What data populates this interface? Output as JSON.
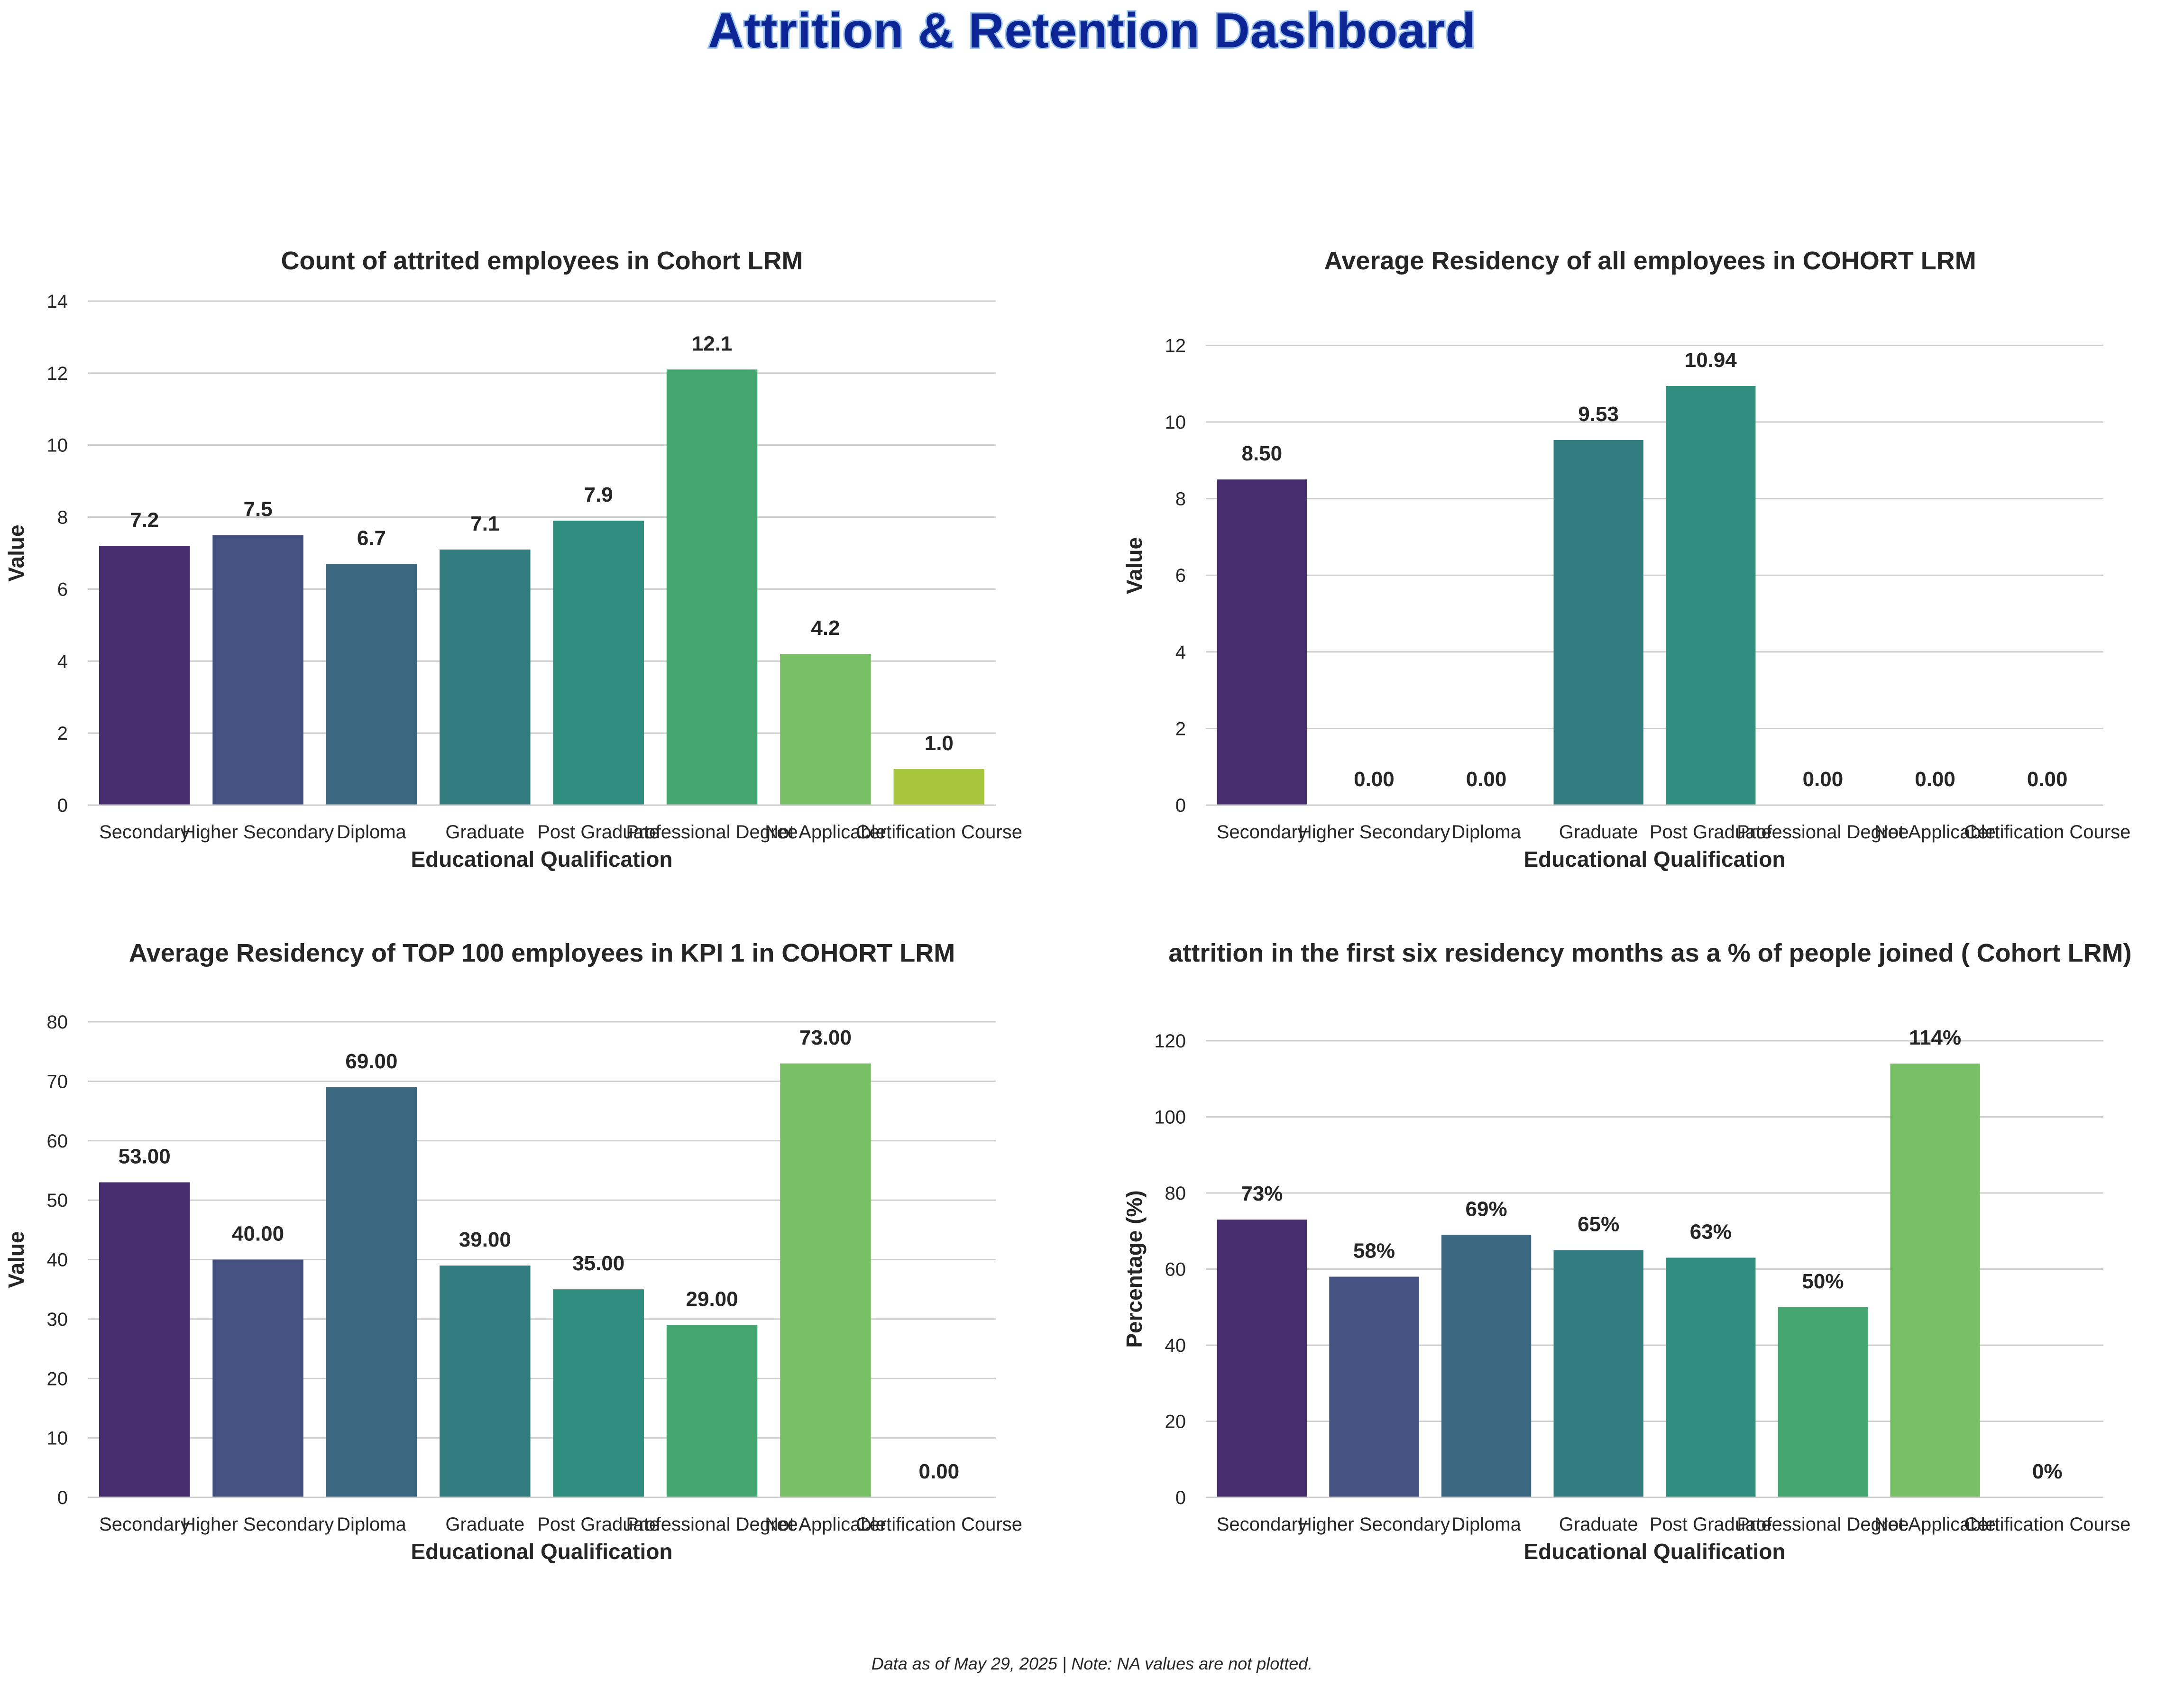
{
  "title": "Attrition & Retention Dashboard",
  "footnote": "Data as of May 29, 2025 | Note: NA values are not plotted.",
  "palette": [
    "#472d6e",
    "#465281",
    "#3b6780",
    "#327c7f",
    "#2e8d7e",
    "#45a671",
    "#78bf65",
    "#a5c63d"
  ],
  "chart_data": [
    {
      "type": "bar",
      "title": "Count of attrited employees in Cohort LRM",
      "xlabel": "Educational Qualification",
      "ylabel": "Value",
      "ylim": [
        0,
        14
      ],
      "yticks": [
        0,
        2,
        4,
        6,
        8,
        10,
        12,
        14
      ],
      "grid": true,
      "categories": [
        "Secondary",
        "Higher Secondary",
        "Diploma",
        "Graduate",
        "Post Graduate",
        "Professional Degree",
        "Not Applicable",
        "Certification Course"
      ],
      "values": [
        7.2,
        7.5,
        6.7,
        7.1,
        7.9,
        12.1,
        4.2,
        1.0
      ],
      "data_labels": [
        "7.2",
        "7.5",
        "6.7",
        "7.1",
        "7.9",
        "12.1",
        "4.2",
        "1.0"
      ]
    },
    {
      "type": "bar",
      "title": "Average Residency of all employees in COHORT LRM",
      "xlabel": "Educational Qualification",
      "ylabel": "Value",
      "ylim": [
        0,
        12.5
      ],
      "yticks": [
        0,
        2,
        4,
        6,
        8,
        10,
        12
      ],
      "grid": true,
      "categories": [
        "Secondary",
        "Higher Secondary",
        "Diploma",
        "Graduate",
        "Post Graduate",
        "Professional Degree",
        "Not Applicable",
        "Certification Course"
      ],
      "values": [
        8.5,
        0,
        0,
        9.53,
        10.94,
        0,
        0,
        0
      ],
      "data_labels": [
        "8.50",
        "0.00",
        "0.00",
        "9.53",
        "10.94",
        "0.00",
        "0.00",
        "0.00"
      ]
    },
    {
      "type": "bar",
      "title": "Average Residency of TOP 100 employees in KPI 1 in COHORT LRM",
      "xlabel": "Educational Qualification",
      "ylabel": "Value",
      "ylim": [
        0,
        80
      ],
      "yticks": [
        0,
        10,
        20,
        30,
        40,
        50,
        60,
        70,
        80
      ],
      "grid": true,
      "categories": [
        "Secondary",
        "Higher Secondary",
        "Diploma",
        "Graduate",
        "Post Graduate",
        "Professional Degree",
        "Not Applicable",
        "Certification Course"
      ],
      "values": [
        53,
        40,
        69,
        39,
        35,
        29,
        73,
        0
      ],
      "data_labels": [
        "53.00",
        "40.00",
        "69.00",
        "39.00",
        "35.00",
        "29.00",
        "73.00",
        "0.00"
      ]
    },
    {
      "type": "bar",
      "title": "attrition in the first six residency months as a % of people joined ( Cohort LRM)",
      "xlabel": "Educational Qualification",
      "ylabel": "Percentage (%)",
      "ylim": [
        0,
        120
      ],
      "yticks": [
        0,
        20,
        40,
        60,
        80,
        100,
        120
      ],
      "grid": true,
      "categories": [
        "Secondary",
        "Higher Secondary",
        "Diploma",
        "Graduate",
        "Post Graduate",
        "Professional Degree",
        "Not Applicable",
        "Certification Course"
      ],
      "values": [
        73,
        58,
        69,
        65,
        63,
        50,
        114,
        0
      ],
      "data_labels": [
        "73%",
        "58%",
        "69%",
        "65%",
        "63%",
        "50%",
        "114%",
        "0%"
      ]
    }
  ]
}
